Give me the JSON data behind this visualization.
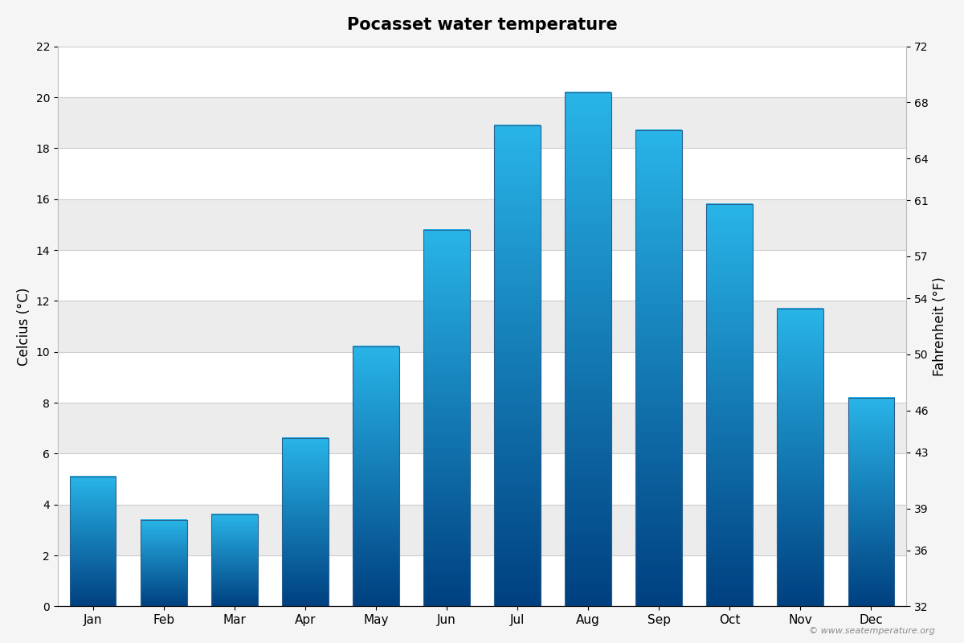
{
  "title": "Pocasset water temperature",
  "months": [
    "Jan",
    "Feb",
    "Mar",
    "Apr",
    "May",
    "Jun",
    "Jul",
    "Aug",
    "Sep",
    "Oct",
    "Nov",
    "Dec"
  ],
  "celsius": [
    5.1,
    3.4,
    3.6,
    6.6,
    10.2,
    14.8,
    18.9,
    20.2,
    18.7,
    15.8,
    11.7,
    8.2
  ],
  "ylabel_left": "Celcius (°C)",
  "ylabel_right": "Fahrenheit (°F)",
  "ylim_left": [
    0,
    22
  ],
  "ylim_right": [
    32,
    72
  ],
  "yticks_left": [
    0,
    2,
    4,
    6,
    8,
    10,
    12,
    14,
    16,
    18,
    20,
    22
  ],
  "yticks_right": [
    32,
    36,
    39,
    43,
    46,
    50,
    54,
    57,
    61,
    64,
    68,
    72
  ],
  "band_colors": [
    "#ffffff",
    "#ececec"
  ],
  "bar_bottom_color": "#004080",
  "bar_top_color": "#29b5e8",
  "bar_edge_color": "#2a6090",
  "watermark": "© www.seatemperature.org",
  "title_fontsize": 15,
  "axis_label_fontsize": 12,
  "background_color": "#f5f5f5"
}
